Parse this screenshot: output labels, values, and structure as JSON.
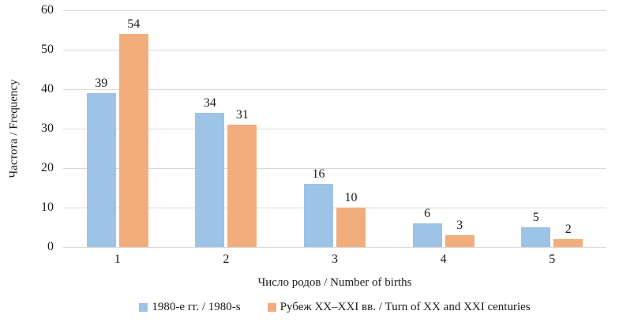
{
  "chart_data": {
    "type": "bar",
    "title": "",
    "categories": [
      "1",
      "2",
      "3",
      "4",
      "5"
    ],
    "series": [
      {
        "name": "1980-е гг. / 1980-s",
        "color": "#9DC3E6",
        "values": [
          39,
          34,
          16,
          6,
          5
        ]
      },
      {
        "name": "Рубеж XX–XXI вв. / Turn of XX  and XXI  centuries",
        "color": "#F2AD7D",
        "values": [
          54,
          31,
          10,
          3,
          2
        ]
      }
    ],
    "xlabel": "Число родов / Number of births",
    "ylabel": "Частота / Frequency",
    "ylim": [
      0,
      60
    ],
    "yticks": [
      0,
      10,
      20,
      30,
      40,
      50,
      60
    ],
    "grid": "horizontal",
    "gridline_color": "#D9D9D9",
    "legend_position": "bottom"
  }
}
